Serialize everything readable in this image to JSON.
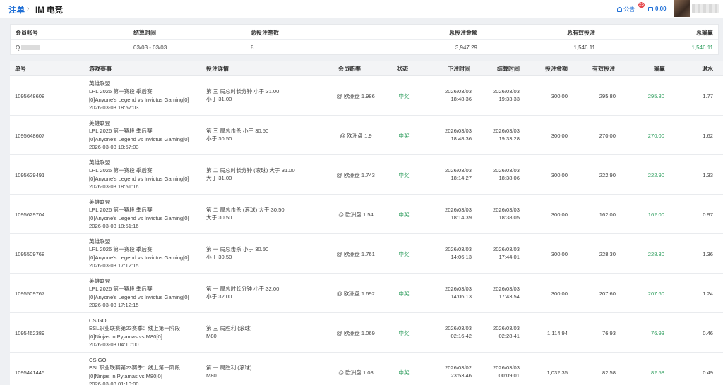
{
  "header": {
    "breadcrumb_link": "注单",
    "breadcrumb_sep": "›",
    "breadcrumb_current": "IM 电竞",
    "notice_label": "公告",
    "notice_badge": "25",
    "balance": "0.00"
  },
  "summary": {
    "headers": [
      "会员帐号",
      "结算时间",
      "总投注笔数",
      "总投注金额",
      "总有效投注",
      "总输赢"
    ],
    "values": {
      "account": "Q",
      "settle_time": "03/03 - 03/03",
      "count": "8",
      "total_bet": "3,947.29",
      "total_valid": "1,546.11",
      "total_winloss": "1,546.11"
    }
  },
  "columns": [
    "单号",
    "游戏赛事",
    "投注详情",
    "会员赔率",
    "状态",
    "下注时间",
    "结算时间",
    "投注金额",
    "有效投注",
    "输赢",
    "退水"
  ],
  "rows": [
    {
      "id": "1095648608",
      "game": [
        "英雄联盟",
        "LPL 2026 第一赛段 季后赛",
        "[0]Anyone's Legend vs Invictus Gaming[0]",
        "2026-03-03 18:57:03"
      ],
      "detail": [
        "第 三 局总时长分钟 小于 31.00",
        "小于 31.00"
      ],
      "odds": "@ 欧洲盘 1.986",
      "status": "中奖",
      "bet_time": [
        "2026/03/03",
        "18:48:36"
      ],
      "settle_time": [
        "2026/03/03",
        "19:33:33"
      ],
      "amount": "300.00",
      "valid": "295.80",
      "winloss": "295.80",
      "rebate": "1.77"
    },
    {
      "id": "1095648607",
      "game": [
        "英雄联盟",
        "LPL 2026 第一赛段 季后赛",
        "[0]Anyone's Legend vs Invictus Gaming[0]",
        "2026-03-03 18:57:03"
      ],
      "detail": [
        "第 三 局总击杀 小于 30.50",
        "小于 30.50"
      ],
      "odds": "@ 欧洲盘 1.9",
      "status": "中奖",
      "bet_time": [
        "2026/03/03",
        "18:48:36"
      ],
      "settle_time": [
        "2026/03/03",
        "19:33:28"
      ],
      "amount": "300.00",
      "valid": "270.00",
      "winloss": "270.00",
      "rebate": "1.62"
    },
    {
      "id": "1095629491",
      "game": [
        "英雄联盟",
        "LPL 2026 第一赛段 季后赛",
        "[0]Anyone's Legend vs Invictus Gaming[0]",
        "2026-03-03 18:51:16"
      ],
      "detail": [
        "第 二 局总时长分钟 (滚球) 大于 31.00",
        "大于 31.00"
      ],
      "odds": "@ 欧洲盘 1.743",
      "status": "中奖",
      "bet_time": [
        "2026/03/03",
        "18:14:27"
      ],
      "settle_time": [
        "2026/03/03",
        "18:38:06"
      ],
      "amount": "300.00",
      "valid": "222.90",
      "winloss": "222.90",
      "rebate": "1.33"
    },
    {
      "id": "1095629704",
      "game": [
        "英雄联盟",
        "LPL 2026 第一赛段 季后赛",
        "[0]Anyone's Legend vs Invictus Gaming[0]",
        "2026-03-03 18:51:16"
      ],
      "detail": [
        "第 二 局总击杀 (滚球) 大于 30.50",
        "大于 30.50"
      ],
      "odds": "@ 欧洲盘 1.54",
      "status": "中奖",
      "bet_time": [
        "2026/03/03",
        "18:14:39"
      ],
      "settle_time": [
        "2026/03/03",
        "18:38:05"
      ],
      "amount": "300.00",
      "valid": "162.00",
      "winloss": "162.00",
      "rebate": "0.97"
    },
    {
      "id": "1095509768",
      "game": [
        "英雄联盟",
        "LPL 2026 第一赛段 季后赛",
        "[0]Anyone's Legend vs Invictus Gaming[0]",
        "2026-03-03 17:12:15"
      ],
      "detail": [
        "第 一 局总击杀 小于 30.50",
        "小于 30.50"
      ],
      "odds": "@ 欧洲盘 1.761",
      "status": "中奖",
      "bet_time": [
        "2026/03/03",
        "14:06:13"
      ],
      "settle_time": [
        "2026/03/03",
        "17:44:01"
      ],
      "amount": "300.00",
      "valid": "228.30",
      "winloss": "228.30",
      "rebate": "1.36"
    },
    {
      "id": "1095509767",
      "game": [
        "英雄联盟",
        "LPL 2026 第一赛段 季后赛",
        "[0]Anyone's Legend vs Invictus Gaming[0]",
        "2026-03-03 17:12:15"
      ],
      "detail": [
        "第 一 局总时长分钟 小于 32.00",
        "小于 32.00"
      ],
      "odds": "@ 欧洲盘 1.692",
      "status": "中奖",
      "bet_time": [
        "2026/03/03",
        "14:06:13"
      ],
      "settle_time": [
        "2026/03/03",
        "17:43:54"
      ],
      "amount": "300.00",
      "valid": "207.60",
      "winloss": "207.60",
      "rebate": "1.24"
    },
    {
      "id": "1095462389",
      "game": [
        "CS:GO",
        "ESL职业联赛第23赛季：线上第一阶段",
        "[0]Ninjas in Pyjamas vs M80[0]",
        "2026-03-03 04:10:00"
      ],
      "detail": [
        "第 三 局胜利 (滚球)",
        "M80"
      ],
      "odds": "@ 欧洲盘 1.069",
      "status": "中奖",
      "bet_time": [
        "2026/03/03",
        "02:16:42"
      ],
      "settle_time": [
        "2026/03/03",
        "02:28:41"
      ],
      "amount": "1,114.94",
      "valid": "76.93",
      "winloss": "76.93",
      "rebate": "0.46"
    },
    {
      "id": "1095441445",
      "game": [
        "CS:GO",
        "ESL职业联赛第23赛季：线上第一阶段",
        "[0]Ninjas in Pyjamas vs M80[0]",
        "2026-03-03 01:10:00"
      ],
      "detail": [
        "第 一 局胜利 (滚球)",
        "M80"
      ],
      "odds": "@ 欧洲盘 1.08",
      "status": "中奖",
      "bet_time": [
        "2026/03/02",
        "23:53:46"
      ],
      "settle_time": [
        "2026/03/03",
        "00:09:01"
      ],
      "amount": "1,032.35",
      "valid": "82.58",
      "winloss": "82.58",
      "rebate": "0.49"
    }
  ]
}
